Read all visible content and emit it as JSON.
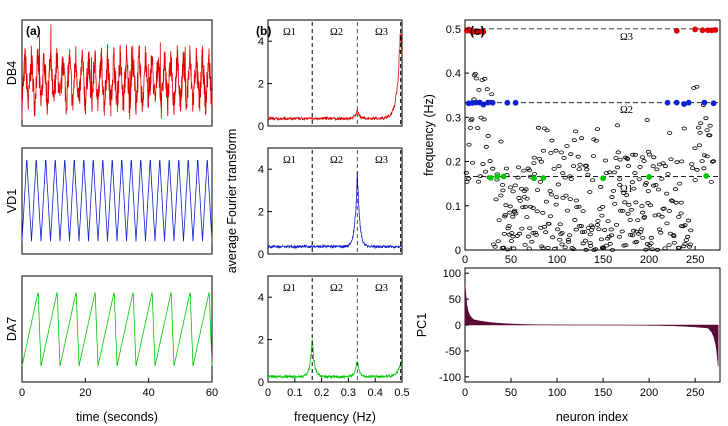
{
  "chart_data": [
    {
      "id": "a",
      "type": "line",
      "panel_label": "(a)",
      "xlabel": "time (seconds)",
      "xlim": [
        0,
        60
      ],
      "xticks": [
        "0",
        "20",
        "40",
        "60"
      ],
      "series": [
        {
          "name": "DB4",
          "color": "#e00000",
          "waveform": "irregular",
          "period_s": 2.0
        },
        {
          "name": "VD1",
          "color": "#1020d0",
          "waveform": "triangle",
          "period_s": 3.0
        },
        {
          "name": "DA7",
          "color": "#00c800",
          "waveform": "sawtooth",
          "period_s": 6.0
        }
      ]
    },
    {
      "id": "b",
      "type": "line",
      "panel_label": "(b)",
      "ylabel": "average Fourier transform",
      "xlabel": "frequency (Hz)",
      "xlim": [
        0,
        0.5
      ],
      "xticks": [
        "0",
        "0.1",
        "0.2",
        "0.3",
        "0.4",
        "0.5"
      ],
      "omega_labels": [
        "Ω1",
        "Ω2",
        "Ω3"
      ],
      "omega_values": [
        0.165,
        0.333,
        0.495
      ],
      "subplots": [
        {
          "color": "#e00000",
          "ylim": [
            0,
            5
          ],
          "yticks": [
            "0",
            "2",
            "4"
          ],
          "baseline": 0.35,
          "peaks": [
            {
              "f": 0.333,
              "h": 0.4
            },
            {
              "f": 0.495,
              "h": 4.4
            }
          ]
        },
        {
          "color": "#1020d0",
          "ylim": [
            0,
            5
          ],
          "yticks": [
            "0",
            "2",
            "4"
          ],
          "baseline": 0.35,
          "peaks": [
            {
              "f": 0.333,
              "h": 3.7
            }
          ]
        },
        {
          "color": "#00c800",
          "ylim": [
            0,
            5
          ],
          "yticks": [
            "0",
            "2",
            "4"
          ],
          "baseline": 0.25,
          "peaks": [
            {
              "f": 0.165,
              "h": 1.8
            },
            {
              "f": 0.333,
              "h": 0.8
            },
            {
              "f": 0.495,
              "h": 0.7
            }
          ]
        }
      ]
    },
    {
      "id": "c",
      "type": "scatter",
      "panel_label": "(c)",
      "ylabel": "frequency (Hz)",
      "xlim": [
        0,
        277
      ],
      "ylim": [
        0,
        0.52
      ],
      "xticks": [
        "0",
        "50",
        "100",
        "150",
        "200",
        "250"
      ],
      "yticks": [
        "0",
        "0.1",
        "0.2",
        "0.3",
        "0.4",
        "0.5"
      ],
      "omega_labels": [
        "Ω1",
        "Ω2",
        "Ω3"
      ],
      "omega_values": [
        0.166,
        0.333,
        0.5
      ],
      "colored_points": {
        "red": {
          "color": "#e00000",
          "freq": 0.496,
          "x": [
            2,
            4,
            6,
            8,
            10,
            14,
            17,
            20,
            230,
            250,
            258,
            264,
            268,
            272
          ]
        },
        "blue": {
          "color": "#1020d0",
          "freq": 0.331,
          "x": [
            4,
            8,
            12,
            16,
            20,
            25,
            30,
            46,
            55,
            220,
            230,
            238,
            243,
            260,
            270
          ]
        },
        "green": {
          "color": "#00c800",
          "freq": 0.165,
          "x": [
            28,
            35,
            42,
            75,
            85,
            150,
            200,
            262
          ]
        }
      }
    },
    {
      "id": "c2",
      "type": "area",
      "ylabel": "PC1",
      "xlabel": "neuron index",
      "xlim": [
        0,
        277
      ],
      "ylim": [
        -110,
        110
      ],
      "xticks": [
        "0",
        "50",
        "100",
        "150",
        "200",
        "250"
      ],
      "yticks": [
        "-100",
        "-50",
        "0",
        "50",
        "100"
      ],
      "color": "#5a0a35",
      "head": [
        80,
        60,
        40,
        30,
        24,
        20,
        17,
        15,
        13,
        11
      ],
      "tail": [
        -8,
        -10,
        -12,
        -14,
        -18,
        -22,
        -28,
        -35,
        -45,
        -60,
        -80
      ]
    }
  ]
}
